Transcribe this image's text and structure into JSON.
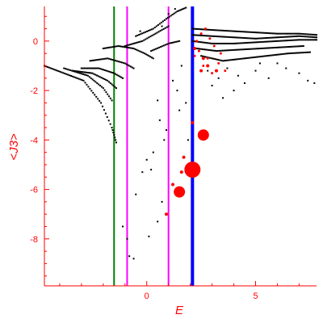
{
  "chart_data": {
    "type": "scatter",
    "title": "",
    "xlabel": "E",
    "ylabel": "<J3>",
    "xlim": [
      -4.7,
      7.8
    ],
    "ylim": [
      -9.9,
      1.4
    ],
    "grid": false,
    "legend": "none",
    "x_ticks": [
      0,
      5
    ],
    "y_ticks": [
      0,
      -2,
      -4,
      -6,
      -8
    ],
    "x_tick_labels": [
      "0",
      "5"
    ],
    "y_tick_labels": [
      "0",
      "-2",
      "-4",
      "-6",
      "-8"
    ],
    "colors": {
      "axis": "#ff0000",
      "small_points": "#000000",
      "large_points": "#ff0000",
      "green_line": "#008000",
      "magenta_line": "#ff00ff",
      "blue_line": "#0000ff"
    },
    "vertical_lines": [
      {
        "x": -1.5,
        "color": "#008000"
      },
      {
        "x": -0.9,
        "color": "#ff00ff"
      },
      {
        "x": 1.0,
        "color": "#ff00ff"
      },
      {
        "x": 2.1,
        "color": "#0000ff"
      }
    ],
    "background_series": {
      "color": "#000000",
      "bands": [
        {
          "x": [
            -4.7,
            -2.9,
            -2.1,
            -1.6,
            -1.4
          ],
          "y": [
            -1.0,
            -1.6,
            -2.5,
            -3.5,
            -4.1
          ]
        },
        {
          "x": [
            -3.8,
            -2.7,
            -2.0,
            -1.6
          ],
          "y": [
            -1.1,
            -1.4,
            -1.9,
            -2.4
          ]
        },
        {
          "x": [
            -3.4,
            -2.5,
            -1.8,
            -1.4
          ],
          "y": [
            -1.2,
            -1.3,
            -1.6,
            -1.9
          ]
        },
        {
          "x": [
            -3.0,
            -2.2,
            -1.5,
            -1.1
          ],
          "y": [
            -1.1,
            -1.1,
            -1.3,
            -1.5
          ]
        },
        {
          "x": [
            -2.6,
            -1.8,
            -1.0,
            -0.6
          ],
          "y": [
            -0.8,
            -0.7,
            -0.9,
            -1.1
          ]
        },
        {
          "x": [
            -2.0,
            -1.3,
            -0.6,
            -0.1,
            0.3
          ],
          "y": [
            -0.3,
            -0.2,
            -0.3,
            -0.5,
            -0.7
          ]
        },
        {
          "x": [
            -1.0,
            -0.2,
            0.4,
            1.0
          ],
          "y": [
            -0.2,
            0.0,
            0.3,
            0.6
          ]
        },
        {
          "x": [
            -0.5,
            0.3,
            0.9,
            1.4,
            1.8
          ],
          "y": [
            0.2,
            0.5,
            0.9,
            1.2,
            1.35
          ]
        },
        {
          "x": [
            0.2,
            1.0,
            1.5
          ],
          "y": [
            -0.4,
            -0.1,
            0.0
          ]
        },
        {
          "x": [
            2.1,
            3.0,
            4.0,
            5.0,
            6.0,
            7.0,
            7.8
          ],
          "y": [
            0.5,
            0.45,
            0.4,
            0.35,
            0.3,
            0.3,
            0.25
          ]
        },
        {
          "x": [
            2.1,
            3.0,
            4.0,
            5.0,
            6.0,
            7.0,
            7.8
          ],
          "y": [
            0.25,
            0.2,
            0.15,
            0.1,
            0.15,
            0.2,
            0.15
          ]
        },
        {
          "x": [
            2.1,
            3.0,
            4.0,
            5.0,
            6.0,
            7.0,
            7.8
          ],
          "y": [
            0.0,
            -0.1,
            -0.1,
            -0.05,
            0.0,
            0.05,
            0.05
          ]
        },
        {
          "x": [
            2.3,
            3.2,
            4.2,
            5.2,
            6.2,
            7.2
          ],
          "y": [
            -0.3,
            -0.4,
            -0.35,
            -0.3,
            -0.25,
            -0.2
          ]
        },
        {
          "x": [
            2.5,
            3.5,
            4.5,
            5.5,
            6.5,
            7.5
          ],
          "y": [
            -0.6,
            -0.8,
            -0.7,
            -0.6,
            -0.5,
            -0.45
          ]
        }
      ],
      "points": [
        {
          "x": -1.1,
          "y": -7.5
        },
        {
          "x": -0.9,
          "y": -8.0
        },
        {
          "x": -0.8,
          "y": -8.7
        },
        {
          "x": -0.6,
          "y": -8.8
        },
        {
          "x": -0.5,
          "y": -6.2
        },
        {
          "x": -0.2,
          "y": -5.3
        },
        {
          "x": 0.0,
          "y": -4.8
        },
        {
          "x": 0.1,
          "y": -7.9
        },
        {
          "x": 0.2,
          "y": -5.2
        },
        {
          "x": 0.3,
          "y": -4.5
        },
        {
          "x": 0.5,
          "y": -2.4
        },
        {
          "x": 0.5,
          "y": -7.3
        },
        {
          "x": 0.6,
          "y": -3.2
        },
        {
          "x": 0.7,
          "y": -6.5
        },
        {
          "x": 0.8,
          "y": -4.0
        },
        {
          "x": 0.9,
          "y": -3.6
        },
        {
          "x": 1.2,
          "y": -1.6
        },
        {
          "x": 1.4,
          "y": -2.0
        },
        {
          "x": 1.5,
          "y": -2.8
        },
        {
          "x": 1.6,
          "y": -1.0
        },
        {
          "x": 1.8,
          "y": -2.5
        },
        {
          "x": 1.9,
          "y": -4.0
        },
        {
          "x": 2.8,
          "y": -1.2
        },
        {
          "x": 3.0,
          "y": -1.8
        },
        {
          "x": 3.3,
          "y": -1.5
        },
        {
          "x": 3.5,
          "y": -2.3
        },
        {
          "x": 3.7,
          "y": -1.1
        },
        {
          "x": 4.0,
          "y": -2.0
        },
        {
          "x": 4.2,
          "y": -1.4
        },
        {
          "x": 4.5,
          "y": -1.7
        },
        {
          "x": 5.0,
          "y": -1.2
        },
        {
          "x": 5.2,
          "y": -0.9
        },
        {
          "x": 5.6,
          "y": -1.5
        },
        {
          "x": 6.0,
          "y": -0.9
        },
        {
          "x": 6.4,
          "y": -1.1
        },
        {
          "x": 7.0,
          "y": -1.3
        },
        {
          "x": 7.4,
          "y": -1.6
        },
        {
          "x": 7.7,
          "y": -1.7
        },
        {
          "x": 1.0,
          "y": 1.1
        },
        {
          "x": 1.3,
          "y": 1.3
        },
        {
          "x": 0.7,
          "y": 0.6
        },
        {
          "x": -0.3,
          "y": 0.4
        }
      ]
    },
    "highlighted_points": [
      {
        "x": 2.5,
        "y": 0.3,
        "size": 1
      },
      {
        "x": 2.7,
        "y": 0.5,
        "size": 1
      },
      {
        "x": 2.9,
        "y": 0.1,
        "size": 1
      },
      {
        "x": 3.1,
        "y": -0.2,
        "size": 1
      },
      {
        "x": 2.4,
        "y": -0.4,
        "size": 1
      },
      {
        "x": 2.8,
        "y": -0.7,
        "size": 1
      },
      {
        "x": 3.3,
        "y": -0.9,
        "size": 1
      },
      {
        "x": 3.6,
        "y": -1.2,
        "size": 1
      },
      {
        "x": 2.3,
        "y": 0.0,
        "size": 1
      },
      {
        "x": 3.0,
        "y": -1.3,
        "size": 1
      },
      {
        "x": 2.6,
        "y": -1.0,
        "size": 1
      },
      {
        "x": 2.2,
        "y": -0.6,
        "size": 1
      },
      {
        "x": 3.4,
        "y": -0.5,
        "size": 1
      },
      {
        "x": 2.6,
        "y": -0.7,
        "size": 2
      },
      {
        "x": 2.2,
        "y": -0.3,
        "size": 2
      },
      {
        "x": 2.8,
        "y": -1.0,
        "size": 2
      },
      {
        "x": 3.2,
        "y": -1.2,
        "size": 2
      },
      {
        "x": 2.5,
        "y": -1.2,
        "size": 2
      },
      {
        "x": 2.1,
        "y": -3.3,
        "size": 2
      },
      {
        "x": 1.7,
        "y": -4.7,
        "size": 2
      },
      {
        "x": 1.6,
        "y": -5.3,
        "size": 2
      },
      {
        "x": 1.2,
        "y": -5.8,
        "size": 2
      },
      {
        "x": 0.9,
        "y": -7.0,
        "size": 2
      },
      {
        "x": 2.6,
        "y": -3.8,
        "size": 7
      },
      {
        "x": 2.1,
        "y": -5.2,
        "size": 10
      },
      {
        "x": 1.5,
        "y": -6.1,
        "size": 7
      }
    ]
  }
}
